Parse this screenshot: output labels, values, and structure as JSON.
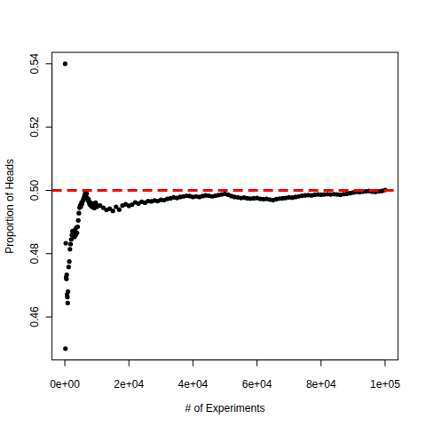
{
  "chart_data": {
    "type": "scatter",
    "x_label": "# of Experiments",
    "y_label": "Proportion of Heads",
    "color": "#000000",
    "marker": "circle",
    "grid": false,
    "x": [
      100,
      200,
      300,
      400,
      500,
      600,
      700,
      800,
      900,
      1000,
      1200,
      1400,
      1600,
      1800,
      2000,
      2200,
      2400,
      2600,
      2800,
      3000,
      3200,
      3400,
      3600,
      3800,
      4000,
      4200,
      4400,
      4600,
      4800,
      5000,
      5200,
      5400,
      5600,
      5800,
      6000,
      6200,
      6400,
      6600,
      6800,
      7000,
      7200,
      7400,
      7600,
      7800,
      8000,
      8200,
      8400,
      8600,
      8800,
      9000,
      9200,
      9400,
      9600,
      9800,
      10000,
      11000,
      12000,
      13000,
      14000,
      15000,
      16000,
      17000,
      18000,
      19000,
      20000,
      21000,
      22000,
      23000,
      24000,
      25000,
      26000,
      27000,
      28000,
      29000,
      30000,
      31000,
      32000,
      33000,
      34000,
      35000,
      36000,
      37000,
      38000,
      39000,
      40000,
      41000,
      42000,
      43000,
      44000,
      45000,
      46000,
      47000,
      48000,
      49000,
      50000,
      51000,
      52000,
      53000,
      54000,
      55000,
      56000,
      57000,
      58000,
      59000,
      60000,
      61000,
      62000,
      63000,
      64000,
      65000,
      66000,
      67000,
      68000,
      69000,
      70000,
      71000,
      72000,
      73000,
      74000,
      75000,
      76000,
      77000,
      78000,
      79000,
      80000,
      81000,
      82000,
      83000,
      84000,
      85000,
      86000,
      87000,
      88000,
      89000,
      90000,
      91000,
      92000,
      93000,
      94000,
      95000,
      96000,
      97000,
      98000,
      99000,
      100000
    ],
    "values": [
      0.54,
      0.45,
      0.4833,
      0.4725,
      0.472,
      0.4733,
      0.4671,
      0.4663,
      0.4644,
      0.468,
      0.4758,
      0.4775,
      0.4814,
      0.483,
      0.4845,
      0.4859,
      0.4871,
      0.4862,
      0.4868,
      0.4853,
      0.4875,
      0.4859,
      0.4882,
      0.4866,
      0.4885,
      0.4905,
      0.4928,
      0.4945,
      0.4952,
      0.4949,
      0.4961,
      0.4958,
      0.4967,
      0.4972,
      0.4978,
      0.4985,
      0.4992,
      0.4997,
      0.4989,
      0.4975,
      0.4968,
      0.4972,
      0.4961,
      0.4955,
      0.4962,
      0.4951,
      0.4958,
      0.4947,
      0.4953,
      0.4958,
      0.4944,
      0.4952,
      0.4961,
      0.4955,
      0.4948,
      0.4952,
      0.4945,
      0.4938,
      0.4942,
      0.4935,
      0.4948,
      0.4939,
      0.4952,
      0.4956,
      0.4951,
      0.4955,
      0.4962,
      0.4958,
      0.4964,
      0.4961,
      0.4966,
      0.4965,
      0.4968,
      0.4966,
      0.497,
      0.4969,
      0.4973,
      0.4975,
      0.4978,
      0.4976,
      0.4979,
      0.4981,
      0.4983,
      0.4982,
      0.4979,
      0.4981,
      0.4979,
      0.4982,
      0.4984,
      0.4983,
      0.4981,
      0.4983,
      0.4985,
      0.4987,
      0.4989,
      0.4986,
      0.4982,
      0.4979,
      0.4978,
      0.4976,
      0.4977,
      0.4975,
      0.4974,
      0.4975,
      0.4976,
      0.4973,
      0.4972,
      0.4973,
      0.4971,
      0.4969,
      0.4972,
      0.4974,
      0.4975,
      0.4976,
      0.4978,
      0.4977,
      0.4979,
      0.4981,
      0.4983,
      0.4984,
      0.4985,
      0.4984,
      0.4986,
      0.4987,
      0.4986,
      0.4987,
      0.4988,
      0.4987,
      0.4988,
      0.4987,
      0.4986,
      0.4988,
      0.4989,
      0.4991,
      0.4993,
      0.4995,
      0.4994,
      0.4996,
      0.4997,
      0.4998,
      0.4996,
      0.4995,
      0.4997,
      0.4998,
      0.5001
    ],
    "xlim": [
      -4000,
      104000
    ],
    "xticks": [
      {
        "value": 0,
        "label": "0e+00"
      },
      {
        "value": 20000,
        "label": "2e+04"
      },
      {
        "value": 40000,
        "label": "4e+04"
      },
      {
        "value": 60000,
        "label": "6e+04"
      },
      {
        "value": 80000,
        "label": "8e+04"
      },
      {
        "value": 100000,
        "label": "1e+05"
      }
    ],
    "ylim": [
      0.4464,
      0.5436
    ],
    "yticks": [
      0.46,
      0.48,
      {
        "value": 0.5,
        "label": "0.50"
      },
      0.52,
      0.54
    ],
    "reference_lines": [
      {
        "value": 0.5,
        "color": "#ff0000",
        "line_style": "dashed"
      }
    ]
  }
}
